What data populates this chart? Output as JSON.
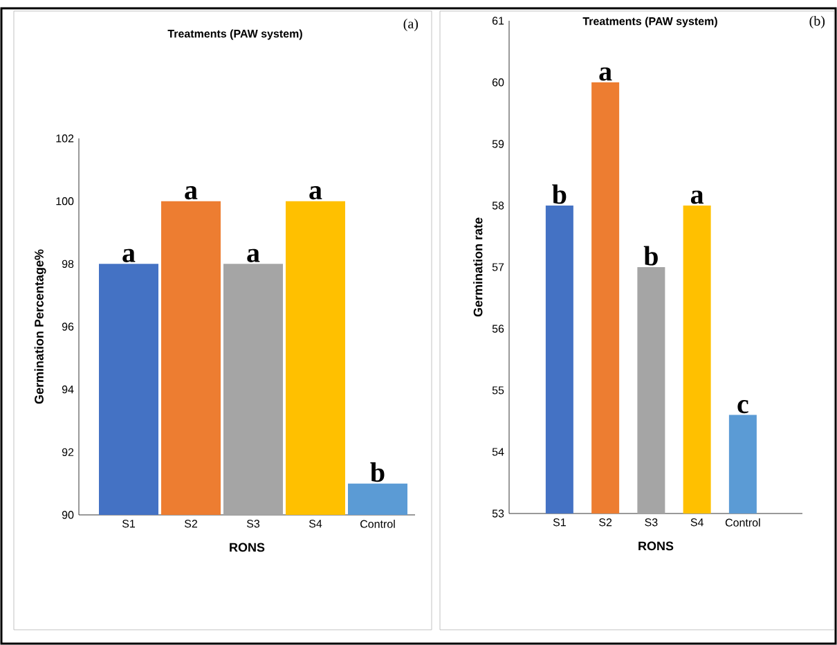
{
  "chart_data": [
    {
      "type": "bar",
      "title": "Treatments (PAW system)",
      "xlabel": "RONS",
      "ylabel": "Germination Percentage%",
      "categories": [
        "S1",
        "S2",
        "S3",
        "S4",
        "Control"
      ],
      "values": [
        98,
        100,
        98,
        100,
        91
      ],
      "colors": [
        "#4472c4",
        "#ed7d31",
        "#a5a5a5",
        "#ffc000",
        "#5b9bd5"
      ],
      "ylim": [
        90,
        102
      ],
      "yticks": [
        90,
        92,
        94,
        96,
        98,
        100,
        102
      ],
      "grid": false,
      "annotations": [
        "(a)",
        {
          "text": "a",
          "x": "S1",
          "y": 98
        },
        {
          "text": "a",
          "x": "S2",
          "y": 100
        },
        {
          "text": "a",
          "x": "S3",
          "y": 98
        },
        {
          "text": "a",
          "x": "S4",
          "y": 100
        },
        {
          "text": "b",
          "x": "Control",
          "y": 91
        }
      ]
    },
    {
      "type": "bar",
      "title": "Treatments (PAW system)",
      "xlabel": "RONS",
      "ylabel": "Germination rate",
      "categories": [
        "S1",
        "S2",
        "S3",
        "S4",
        "Control"
      ],
      "values": [
        58,
        60,
        57,
        58,
        54.6
      ],
      "colors": [
        "#4472c4",
        "#ed7d31",
        "#a5a5a5",
        "#ffc000",
        "#5b9bd5"
      ],
      "ylim": [
        53,
        61
      ],
      "yticks": [
        53,
        54,
        55,
        56,
        57,
        58,
        59,
        60,
        61
      ],
      "grid": false,
      "annotations": [
        "(b)",
        {
          "text": "b",
          "x": "S1",
          "y": 58
        },
        {
          "text": "a",
          "x": "S2",
          "y": 60
        },
        {
          "text": "b",
          "x": "S3",
          "y": 57
        },
        {
          "text": "a",
          "x": "S4",
          "y": 58
        },
        {
          "text": "c",
          "x": "Control",
          "y": 54.6
        }
      ]
    }
  ]
}
